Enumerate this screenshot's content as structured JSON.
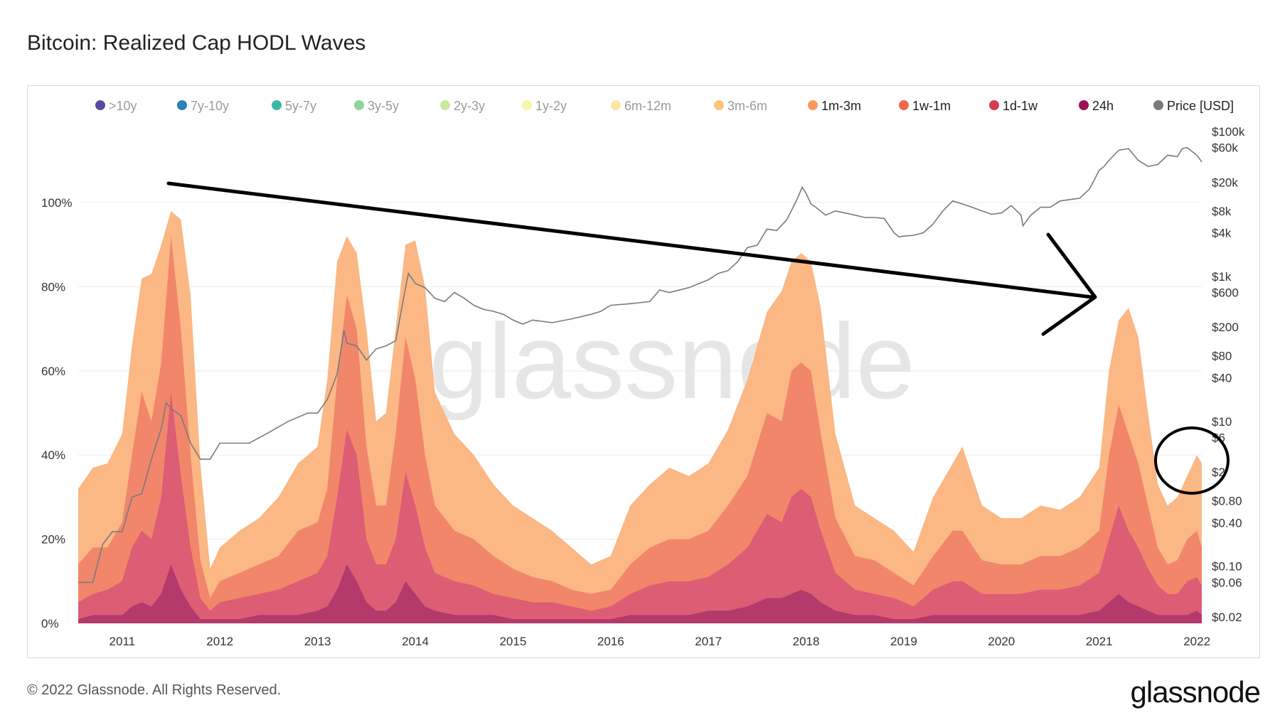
{
  "title": "Bitcoin: Realized Cap HODL Waves",
  "footer": {
    "copyright": "© 2022 Glassnode. All Rights Reserved.",
    "logo": "glassnode"
  },
  "watermark": "glassnode",
  "legend": [
    {
      "label": ">10y",
      "color": "#5b4a9e",
      "active": false
    },
    {
      "label": "7y-10y",
      "color": "#2c7fb8",
      "active": false
    },
    {
      "label": "5y-7y",
      "color": "#3bb7a5",
      "active": false
    },
    {
      "label": "3y-5y",
      "color": "#8fd49b",
      "active": false
    },
    {
      "label": "2y-3y",
      "color": "#c9e99e",
      "active": false
    },
    {
      "label": "1y-2y",
      "color": "#f6f7a8",
      "active": false
    },
    {
      "label": "6m-12m",
      "color": "#fde7a0",
      "active": false
    },
    {
      "label": "3m-6m",
      "color": "#fbc47a",
      "active": false
    },
    {
      "label": "1m-3m",
      "color": "#f99a5c",
      "active": true
    },
    {
      "label": "1w-1m",
      "color": "#ee6a4c",
      "active": true
    },
    {
      "label": "1d-1w",
      "color": "#d43d51",
      "active": true
    },
    {
      "label": "24h",
      "color": "#9c1352",
      "active": true
    },
    {
      "label": "Price [USD]",
      "color": "#7a7a7a",
      "active": true
    }
  ],
  "chart_data": {
    "type": "area",
    "title": "Bitcoin: Realized Cap HODL Waves",
    "stacked": true,
    "x_ticks": [
      "2011",
      "2012",
      "2013",
      "2014",
      "2015",
      "2016",
      "2017",
      "2018",
      "2019",
      "2020",
      "2021",
      "2022"
    ],
    "y_left_ticks": [
      "0%",
      "20%",
      "40%",
      "60%",
      "80%",
      "100%"
    ],
    "y_left_range": [
      0,
      100
    ],
    "y_right_ticks": [
      "$0.02",
      "$0.06",
      "$0.10",
      "$0.40",
      "$0.80",
      "$2",
      "$6",
      "$10",
      "$40",
      "$80",
      "$200",
      "$600",
      "$1k",
      "$4k",
      "$8k",
      "$20k",
      "$60k",
      "$100k"
    ],
    "y_right_scale": "log",
    "x": [
      2010.55,
      2010.7,
      2010.85,
      2011.0,
      2011.1,
      2011.2,
      2011.3,
      2011.4,
      2011.5,
      2011.6,
      2011.7,
      2011.8,
      2011.9,
      2012.0,
      2012.2,
      2012.4,
      2012.6,
      2012.8,
      2013.0,
      2013.1,
      2013.2,
      2013.3,
      2013.4,
      2013.5,
      2013.6,
      2013.7,
      2013.8,
      2013.9,
      2014.0,
      2014.1,
      2014.2,
      2014.4,
      2014.6,
      2014.8,
      2015.0,
      2015.2,
      2015.4,
      2015.6,
      2015.8,
      2016.0,
      2016.2,
      2016.4,
      2016.6,
      2016.8,
      2017.0,
      2017.2,
      2017.4,
      2017.6,
      2017.75,
      2017.85,
      2017.95,
      2018.05,
      2018.15,
      2018.3,
      2018.5,
      2018.7,
      2018.9,
      2019.1,
      2019.3,
      2019.5,
      2019.6,
      2019.8,
      2020.0,
      2020.2,
      2020.4,
      2020.6,
      2020.8,
      2021.0,
      2021.1,
      2021.2,
      2021.3,
      2021.4,
      2021.5,
      2021.6,
      2021.7,
      2021.8,
      2021.9,
      2022.0,
      2022.05
    ],
    "series": [
      {
        "name": "1m-3m",
        "color": "#fbb784",
        "values": [
          32,
          37,
          38,
          45,
          66,
          82,
          83,
          90,
          98,
          96,
          78,
          38,
          13,
          18,
          22,
          25,
          30,
          38,
          42,
          58,
          86,
          92,
          88,
          70,
          48,
          50,
          70,
          90,
          91,
          80,
          55,
          45,
          40,
          33,
          28,
          25,
          22,
          18,
          14,
          16,
          28,
          33,
          37,
          35,
          38,
          46,
          58,
          74,
          79,
          86,
          88,
          86,
          75,
          45,
          28,
          25,
          22,
          17,
          30,
          38,
          42,
          28,
          25,
          25,
          28,
          27,
          30,
          37,
          60,
          72,
          75,
          68,
          50,
          33,
          28,
          30,
          35,
          40,
          38
        ]
      },
      {
        "name": "1w-1m",
        "color": "#f1866b",
        "values": [
          14,
          18,
          18,
          24,
          40,
          55,
          48,
          62,
          92,
          70,
          40,
          15,
          6,
          10,
          12,
          14,
          16,
          22,
          24,
          32,
          58,
          78,
          70,
          42,
          28,
          28,
          45,
          68,
          58,
          40,
          28,
          22,
          20,
          16,
          13,
          11,
          10,
          8,
          7,
          8,
          14,
          18,
          20,
          20,
          22,
          28,
          35,
          50,
          48,
          60,
          62,
          60,
          45,
          25,
          16,
          15,
          12,
          9,
          16,
          22,
          22,
          15,
          14,
          14,
          16,
          16,
          18,
          22,
          40,
          52,
          45,
          38,
          28,
          18,
          14,
          15,
          20,
          22,
          18
        ]
      },
      {
        "name": "1d-1w",
        "color": "#dc5d74",
        "values": [
          5,
          7,
          8,
          10,
          18,
          22,
          20,
          30,
          55,
          35,
          18,
          6,
          3,
          5,
          6,
          7,
          8,
          10,
          12,
          16,
          30,
          46,
          40,
          20,
          14,
          14,
          20,
          36,
          28,
          18,
          12,
          10,
          9,
          7,
          6,
          5,
          5,
          4,
          3,
          4,
          7,
          9,
          10,
          10,
          11,
          14,
          18,
          26,
          24,
          30,
          32,
          30,
          22,
          12,
          8,
          7,
          6,
          4,
          8,
          10,
          10,
          7,
          7,
          7,
          8,
          8,
          9,
          12,
          20,
          28,
          22,
          18,
          13,
          9,
          7,
          7,
          10,
          11,
          9
        ]
      },
      {
        "name": "24h",
        "color": "#b43a6c",
        "values": [
          1,
          2,
          2,
          2,
          4,
          5,
          4,
          7,
          14,
          8,
          4,
          1,
          1,
          1,
          1,
          2,
          2,
          2,
          3,
          4,
          8,
          14,
          10,
          5,
          3,
          3,
          5,
          10,
          7,
          4,
          3,
          2,
          2,
          2,
          1,
          1,
          1,
          1,
          1,
          1,
          2,
          2,
          2,
          2,
          3,
          3,
          4,
          6,
          6,
          7,
          8,
          7,
          5,
          3,
          2,
          2,
          1,
          1,
          2,
          2,
          2,
          2,
          2,
          2,
          2,
          2,
          2,
          3,
          5,
          7,
          5,
          4,
          3,
          2,
          2,
          2,
          2,
          3,
          2
        ]
      }
    ],
    "price": {
      "name": "Price [USD]",
      "x": [
        2010.55,
        2010.7,
        2010.8,
        2010.9,
        2011.0,
        2011.1,
        2011.2,
        2011.3,
        2011.4,
        2011.45,
        2011.5,
        2011.6,
        2011.7,
        2011.8,
        2011.9,
        2012.0,
        2012.1,
        2012.3,
        2012.5,
        2012.7,
        2012.9,
        2013.0,
        2013.1,
        2013.2,
        2013.27,
        2013.3,
        2013.4,
        2013.5,
        2013.6,
        2013.7,
        2013.8,
        2013.9,
        2013.93,
        2014.0,
        2014.1,
        2014.2,
        2014.3,
        2014.4,
        2014.5,
        2014.6,
        2014.7,
        2014.8,
        2014.9,
        2015.0,
        2015.1,
        2015.2,
        2015.4,
        2015.6,
        2015.8,
        2015.9,
        2016.0,
        2016.2,
        2016.4,
        2016.5,
        2016.6,
        2016.8,
        2017.0,
        2017.1,
        2017.2,
        2017.3,
        2017.4,
        2017.5,
        2017.6,
        2017.7,
        2017.8,
        2017.9,
        2017.96,
        2018.0,
        2018.05,
        2018.1,
        2018.2,
        2018.3,
        2018.4,
        2018.5,
        2018.6,
        2018.7,
        2018.8,
        2018.9,
        2018.95,
        2019.0,
        2019.1,
        2019.2,
        2019.3,
        2019.4,
        2019.5,
        2019.6,
        2019.7,
        2019.8,
        2019.9,
        2020.0,
        2020.1,
        2020.2,
        2020.22,
        2020.3,
        2020.4,
        2020.5,
        2020.6,
        2020.7,
        2020.8,
        2020.9,
        2021.0,
        2021.05,
        2021.1,
        2021.2,
        2021.3,
        2021.4,
        2021.5,
        2021.6,
        2021.7,
        2021.8,
        2021.85,
        2021.9,
        2022.0,
        2022.05
      ],
      "values": [
        0.06,
        0.06,
        0.2,
        0.3,
        0.3,
        0.9,
        1.0,
        3.0,
        8,
        18,
        15,
        12,
        5,
        3,
        3,
        5,
        5,
        5,
        7,
        10,
        13,
        13,
        20,
        45,
        180,
        120,
        110,
        70,
        100,
        110,
        130,
        700,
        1100,
        800,
        700,
        500,
        450,
        600,
        500,
        400,
        350,
        330,
        300,
        250,
        220,
        250,
        230,
        260,
        300,
        330,
        400,
        420,
        450,
        650,
        600,
        700,
        900,
        1100,
        1200,
        1600,
        2500,
        2700,
        4500,
        4300,
        6000,
        11000,
        17000,
        14000,
        10000,
        9000,
        7000,
        8000,
        7500,
        7000,
        6500,
        6500,
        6300,
        4000,
        3500,
        3600,
        3700,
        4000,
        5300,
        8000,
        11000,
        10000,
        9000,
        8000,
        7200,
        7500,
        9500,
        7000,
        5000,
        7000,
        9000,
        9000,
        11000,
        11500,
        12000,
        16000,
        29000,
        33000,
        40000,
        55000,
        58000,
        40000,
        33000,
        35000,
        47000,
        45000,
        58000,
        60000,
        47000,
        38000
      ]
    }
  },
  "annotations": {
    "arrow": "hand-drawn downward trend arrow",
    "circle": "hand-drawn circle around late-2021 peak"
  }
}
